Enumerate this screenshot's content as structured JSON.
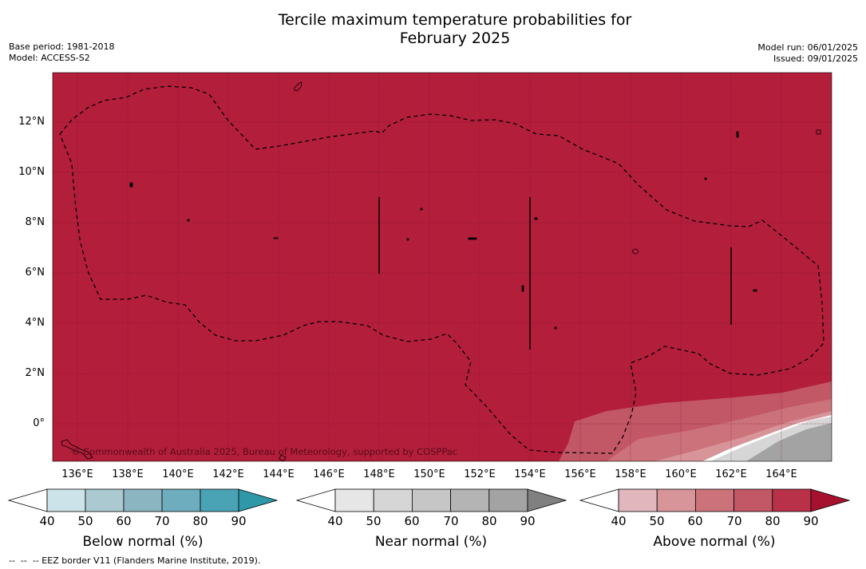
{
  "title_line1": "Tercile maximum temperature probabilities for",
  "title_line2": "February 2025",
  "base_period": "Base period: 1981-2018",
  "model": "Model: ACCESS-S2",
  "model_run": "Model run: 06/01/2025",
  "issued": "Issued: 09/01/2025",
  "copyright": "© Commonwealth of Australia 2025, Bureau of Meteorology, supported by COSPPac",
  "footer": "--  --  -- EEZ border V11 (Flanders Marine Institute, 2019).",
  "lat_labels": [
    "12°N",
    "10°N",
    "8°N",
    "6°N",
    "4°N",
    "2°N",
    "0°"
  ],
  "lon_labels": [
    "136°E",
    "138°E",
    "140°E",
    "142°E",
    "144°E",
    "146°E",
    "148°E",
    "150°E",
    "152°E",
    "154°E",
    "156°E",
    "158°E",
    "160°E",
    "162°E",
    "164°E"
  ],
  "colorbars": [
    {
      "label": "Below normal (%)",
      "ticks": [
        "40",
        "50",
        "60",
        "70",
        "80",
        "90"
      ],
      "colors": [
        "#ffffff",
        "#cce3ea",
        "#aac9d1",
        "#8bb5c1",
        "#6eadbd",
        "#4aa3b5",
        "#2e97a8"
      ]
    },
    {
      "label": "Near normal (%)",
      "ticks": [
        "40",
        "50",
        "60",
        "70",
        "80",
        "90"
      ],
      "colors": [
        "#ffffff",
        "#e6e6e6",
        "#d6d6d6",
        "#c6c6c6",
        "#b4b4b4",
        "#a3a3a3",
        "#808080"
      ]
    },
    {
      "label": "Above normal (%)",
      "ticks": [
        "40",
        "50",
        "60",
        "70",
        "80",
        "90"
      ],
      "colors": [
        "#ffffff",
        "#e1b7bd",
        "#d79499",
        "#cc727b",
        "#c25766",
        "#b83148",
        "#a5112e"
      ]
    }
  ],
  "colors": {
    "map_fill": "#b31e3b",
    "background": "#ffffff"
  }
}
